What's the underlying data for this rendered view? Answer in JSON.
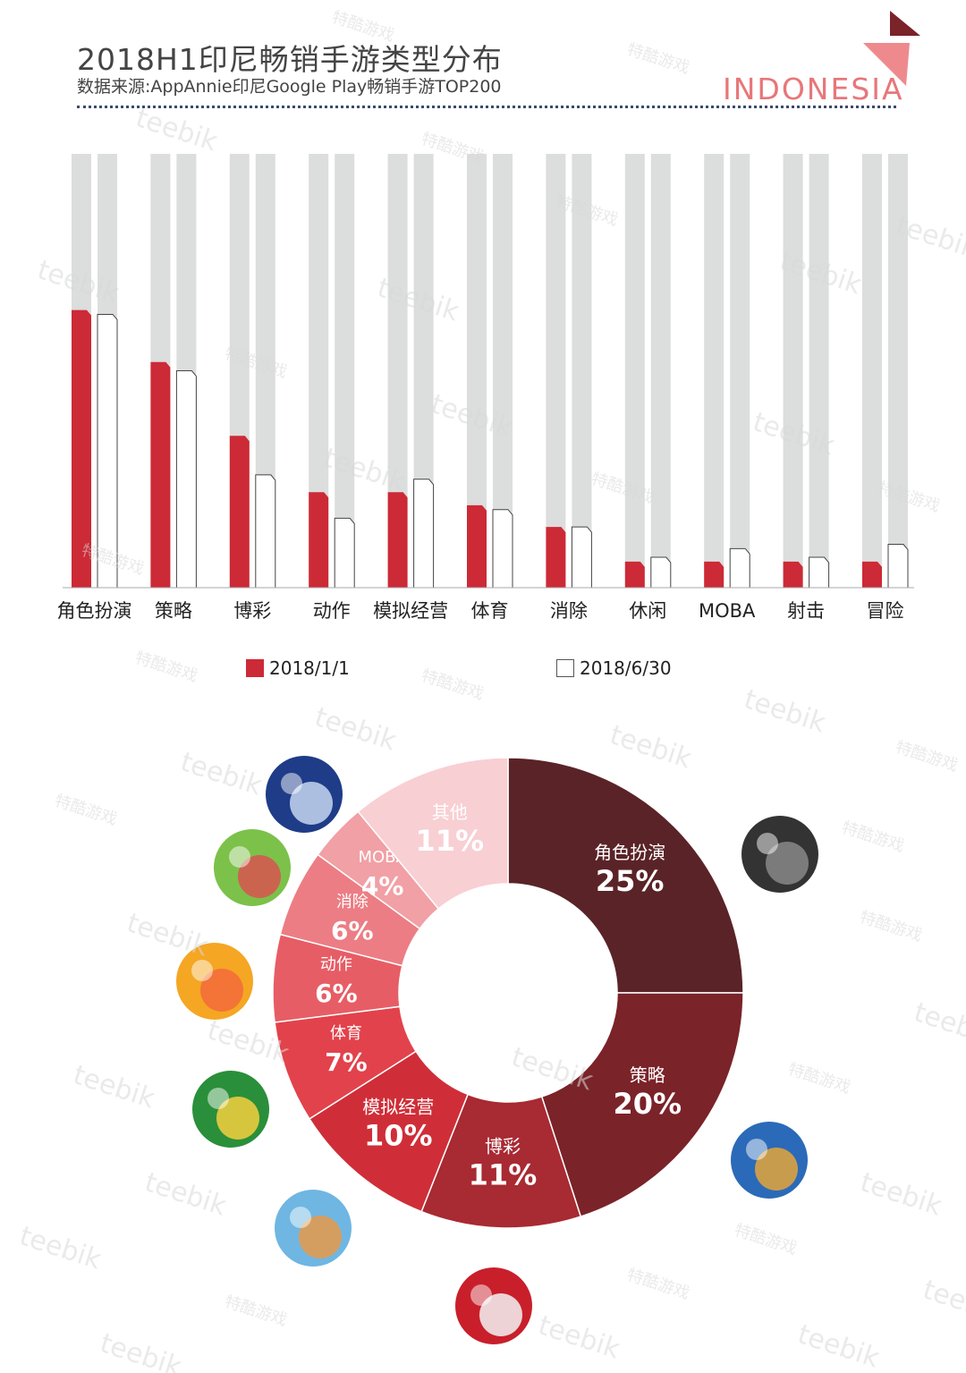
{
  "header": {
    "title": "2018H1印尼畅销手游类型分布",
    "subtitle": "数据来源:AppAnnie印尼Google Play畅销手游TOP200",
    "brand": "INDONESIA"
  },
  "colors": {
    "series_jan": "#cc2a36",
    "series_jun": "#ffffff",
    "track": "#dcdddd",
    "brand": "#e8767a"
  },
  "chart_data": [
    {
      "type": "bar",
      "categories": [
        "角色扮演",
        "策略",
        "博彩",
        "动作",
        "模拟经营",
        "体育",
        "消除",
        "休闲",
        "MOBA",
        "射击",
        "冒险"
      ],
      "series": [
        {
          "name": "2018/1/1",
          "values": [
            64,
            52,
            35,
            22,
            22,
            19,
            14,
            6,
            6,
            6,
            6
          ]
        },
        {
          "name": "2018/6/30",
          "values": [
            63,
            50,
            26,
            16,
            25,
            18,
            14,
            7,
            9,
            7,
            10
          ]
        }
      ],
      "ylim": [
        0,
        100
      ],
      "grid": false,
      "legend": "bottom"
    },
    {
      "type": "pie",
      "segments": [
        {
          "label": "角色扮演",
          "value": 25,
          "display": "25%",
          "color": "#5a2327"
        },
        {
          "label": "策略",
          "value": 20,
          "display": "20%",
          "color": "#7a2329"
        },
        {
          "label": "博彩",
          "value": 11,
          "display": "11%",
          "color": "#a82a32"
        },
        {
          "label": "模拟经营",
          "value": 10,
          "display": "10%",
          "color": "#cf2e38"
        },
        {
          "label": "体育",
          "value": 7,
          "display": "7%",
          "color": "#e2424b"
        },
        {
          "label": "动作",
          "value": 6,
          "display": "6%",
          "color": "#e75d65"
        },
        {
          "label": "消除",
          "value": 6,
          "display": "6%",
          "color": "#ec7d84"
        },
        {
          "label": "MOBA",
          "value": 4,
          "display": "4%",
          "color": "#f1a0a5"
        },
        {
          "label": "其他",
          "value": 11,
          "display": "11%",
          "color": "#f8cfd3"
        }
      ]
    }
  ],
  "watermarks": [
    "teebik",
    "特酷游戏"
  ]
}
